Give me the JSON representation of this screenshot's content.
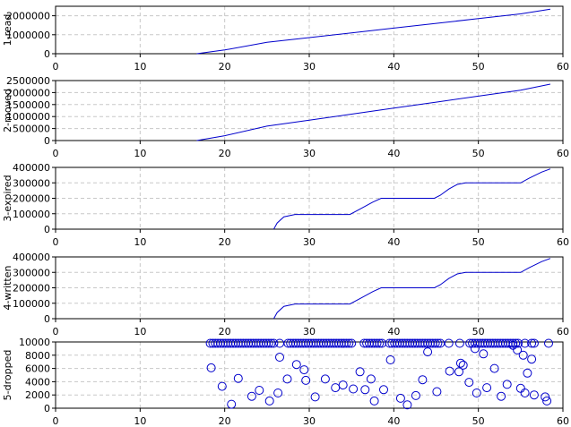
{
  "chart_data": [
    {
      "type": "line",
      "ylabel": "1-read",
      "xlim": [
        0,
        60
      ],
      "ylim": [
        0,
        2500000
      ],
      "x_ticks": [
        "0",
        "10",
        "20",
        "30",
        "40",
        "50",
        "60"
      ],
      "y_ticks": [
        0,
        1000000,
        2000000
      ],
      "y_tick_labels": [
        "0",
        "1000000",
        "2000000"
      ],
      "grid": true,
      "color": "#0000cc",
      "series": [
        {
          "x": [
            16.7,
            20,
            25,
            30,
            35,
            40,
            45,
            50,
            55,
            58.5
          ],
          "y": [
            0,
            200000,
            600000,
            850000,
            1100000,
            1350000,
            1600000,
            1850000,
            2100000,
            2350000
          ]
        }
      ]
    },
    {
      "type": "line",
      "ylabel": "2-moved",
      "xlim": [
        0,
        60
      ],
      "ylim": [
        0,
        2500000
      ],
      "x_ticks": [
        "0",
        "10",
        "20",
        "30",
        "40",
        "50",
        "60"
      ],
      "y_ticks": [
        0,
        500000,
        1000000,
        1500000,
        2000000,
        2500000
      ],
      "y_tick_labels": [
        "0",
        "500000",
        "1000000",
        "1500000",
        "2000000",
        "2500000"
      ],
      "grid": true,
      "color": "#0000cc",
      "series": [
        {
          "x": [
            16.7,
            20,
            25,
            30,
            35,
            40,
            45,
            50,
            55,
            58.5
          ],
          "y": [
            0,
            200000,
            600000,
            850000,
            1100000,
            1350000,
            1600000,
            1850000,
            2100000,
            2350000
          ]
        }
      ]
    },
    {
      "type": "line",
      "ylabel": "3-expired",
      "xlim": [
        0,
        60
      ],
      "ylim": [
        0,
        400000
      ],
      "x_ticks": [
        "0",
        "10",
        "20",
        "30",
        "40",
        "50",
        "60"
      ],
      "y_ticks": [
        0,
        100000,
        200000,
        300000,
        400000
      ],
      "y_tick_labels": [
        "0",
        "100000",
        "200000",
        "300000",
        "400000"
      ],
      "grid": true,
      "color": "#0000cc",
      "series": [
        {
          "x": [
            25.8,
            26.2,
            27.0,
            28.3,
            34.8,
            36.0,
            37.5,
            38.5,
            44.8,
            45.5,
            46.5,
            47.5,
            48.5,
            55.0,
            56.0,
            57.5,
            58.5
          ],
          "y": [
            0,
            40000,
            80000,
            95000,
            95000,
            130000,
            175000,
            200000,
            200000,
            220000,
            260000,
            290000,
            300000,
            300000,
            330000,
            370000,
            390000
          ]
        }
      ]
    },
    {
      "type": "line",
      "ylabel": "4-written",
      "xlim": [
        0,
        60
      ],
      "ylim": [
        0,
        400000
      ],
      "x_ticks": [
        "0",
        "10",
        "20",
        "30",
        "40",
        "50",
        "60"
      ],
      "y_ticks": [
        0,
        100000,
        200000,
        300000,
        400000
      ],
      "y_tick_labels": [
        "0",
        "100000",
        "200000",
        "300000",
        "400000"
      ],
      "grid": true,
      "color": "#0000cc",
      "series": [
        {
          "x": [
            25.8,
            26.2,
            27.0,
            28.3,
            34.8,
            36.0,
            37.5,
            38.5,
            44.8,
            45.5,
            46.5,
            47.5,
            48.5,
            55.0,
            56.0,
            57.5,
            58.5
          ],
          "y": [
            0,
            40000,
            80000,
            95000,
            95000,
            130000,
            175000,
            200000,
            200000,
            220000,
            260000,
            290000,
            300000,
            300000,
            330000,
            370000,
            390000
          ]
        }
      ]
    },
    {
      "type": "scatter",
      "ylabel": "5-dropped",
      "xlim": [
        0,
        60
      ],
      "ylim": [
        0,
        10000
      ],
      "x_ticks": [
        "0",
        "10",
        "20",
        "30",
        "40",
        "50",
        "60"
      ],
      "y_ticks": [
        0,
        2000,
        4000,
        6000,
        8000,
        10000
      ],
      "y_tick_labels": [
        "0",
        "2000",
        "4000",
        "6000",
        "8000",
        "10000"
      ],
      "grid": true,
      "color": "#0000cc",
      "series": [
        {
          "x": [
            18.3,
            18.6,
            18.9,
            19.2,
            19.5,
            19.8,
            20.1,
            20.4,
            20.7,
            21.0,
            21.3,
            21.6,
            21.9,
            22.2,
            22.5,
            22.8,
            23.1,
            23.4,
            23.7,
            24.0,
            24.3,
            24.6,
            24.9,
            25.2,
            25.5,
            25.8,
            26.5,
            27.5,
            27.8,
            28.1,
            28.4,
            28.7,
            29.0,
            29.3,
            29.6,
            29.9,
            30.2,
            30.5,
            30.8,
            31.1,
            31.4,
            31.7,
            32.0,
            32.3,
            32.6,
            32.9,
            33.2,
            33.5,
            33.8,
            34.1,
            34.4,
            34.7,
            35.0,
            36.5,
            36.8,
            37.1,
            37.4,
            37.7,
            38.0,
            38.3,
            38.6,
            39.5,
            39.8,
            40.1,
            40.4,
            40.7,
            41.0,
            41.3,
            41.6,
            41.9,
            42.2,
            42.5,
            42.8,
            43.1,
            43.4,
            43.7,
            44.0,
            44.3,
            44.6,
            44.9,
            45.2,
            45.5,
            46.5,
            47.8,
            49.0,
            49.3,
            49.6,
            49.9,
            50.2,
            50.5,
            50.8,
            51.1,
            51.4,
            51.7,
            52.0,
            52.3,
            52.6,
            52.9,
            53.2,
            53.5,
            53.8,
            54.1,
            54.4,
            54.7,
            55.5,
            56.3,
            56.6,
            58.3,
            18.4,
            19.7,
            20.8,
            21.6,
            23.2,
            24.1,
            25.3,
            26.3,
            26.5,
            27.4,
            28.5,
            29.4,
            29.6,
            30.7,
            31.9,
            33.1,
            34.0,
            35.2,
            36.0,
            36.6,
            37.3,
            37.7,
            38.8,
            39.6,
            40.8,
            41.6,
            42.6,
            43.4,
            44.0,
            45.1,
            46.6,
            47.7,
            47.9,
            48.2,
            48.9,
            49.6,
            49.8,
            50.6,
            51.0,
            51.9,
            52.7,
            53.4,
            54.1,
            54.6,
            55.0,
            55.3,
            55.5,
            55.8,
            56.3,
            56.6,
            57.9,
            58.1
          ],
          "y": [
            9800,
            9800,
            9800,
            9800,
            9800,
            9800,
            9800,
            9800,
            9800,
            9800,
            9800,
            9800,
            9800,
            9800,
            9800,
            9800,
            9800,
            9800,
            9800,
            9800,
            9800,
            9800,
            9800,
            9800,
            9800,
            9800,
            9800,
            9800,
            9800,
            9800,
            9800,
            9800,
            9800,
            9800,
            9800,
            9800,
            9800,
            9800,
            9800,
            9800,
            9800,
            9800,
            9800,
            9800,
            9800,
            9800,
            9800,
            9800,
            9800,
            9800,
            9800,
            9800,
            9800,
            9800,
            9800,
            9800,
            9800,
            9800,
            9800,
            9800,
            9800,
            9800,
            9800,
            9800,
            9800,
            9800,
            9800,
            9800,
            9800,
            9800,
            9800,
            9800,
            9800,
            9800,
            9800,
            9800,
            9800,
            9800,
            9800,
            9800,
            9800,
            9800,
            9800,
            9800,
            9800,
            9800,
            9800,
            9800,
            9800,
            9800,
            9800,
            9800,
            9800,
            9800,
            9800,
            9800,
            9800,
            9800,
            9800,
            9800,
            9800,
            9800,
            9800,
            9800,
            9800,
            9800,
            9800,
            9800,
            6100,
            3300,
            600,
            4500,
            1800,
            2700,
            1100,
            2300,
            7700,
            4400,
            6600,
            5800,
            4200,
            1700,
            4400,
            3100,
            3500,
            2900,
            5500,
            2800,
            4400,
            1100,
            2800,
            7300,
            1500,
            500,
            1900,
            4300,
            8500,
            2500,
            5600,
            5500,
            6800,
            6500,
            3900,
            9000,
            2300,
            8200,
            3100,
            6000,
            1800,
            3600,
            9500,
            8800,
            3000,
            8000,
            2300,
            5300,
            7400,
            2000,
            1700,
            1100
          ]
        }
      ]
    }
  ]
}
